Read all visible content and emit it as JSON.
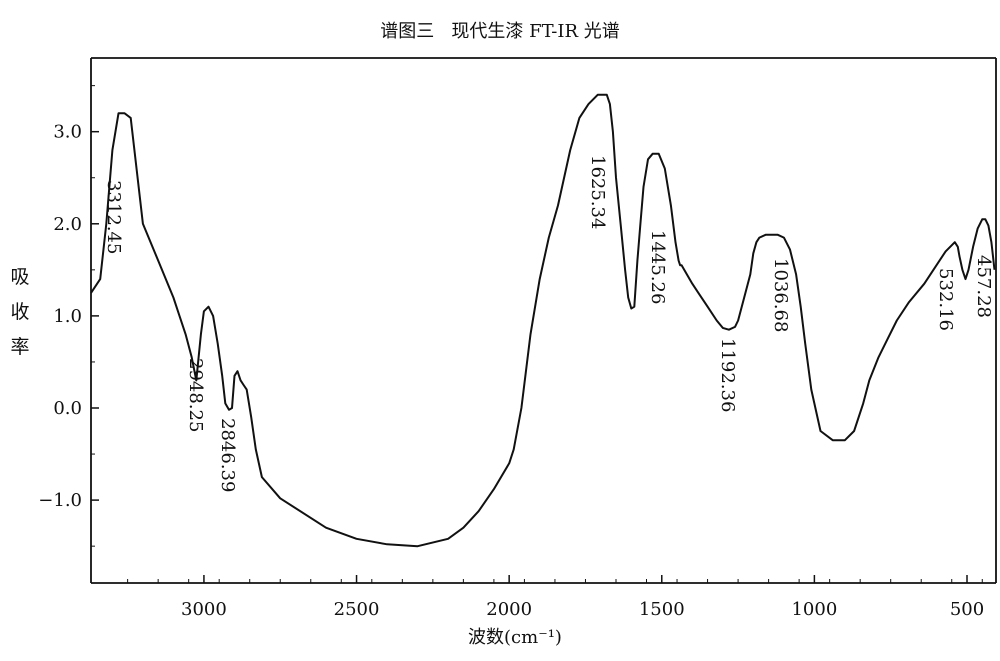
{
  "chart_data": {
    "type": "line",
    "title": "谱图三   现代生漆 FT-IR 光谱",
    "xlabel": "波数(cm⁻¹)",
    "ylabel": "吸收率",
    "x_reversed": true,
    "xlim": [
      3370,
      405
    ],
    "ylim": [
      -1.9,
      3.8
    ],
    "grid": false,
    "x_ticks": [
      {
        "value": 3000,
        "label": "3000"
      },
      {
        "value": 2500,
        "label": "2500"
      },
      {
        "value": 2000,
        "label": "2000"
      },
      {
        "value": 1500,
        "label": "1500"
      },
      {
        "value": 1000,
        "label": "1000"
      },
      {
        "value": 500,
        "label": "500"
      }
    ],
    "y_ticks": [
      {
        "value": 3.0,
        "label": "3.0"
      },
      {
        "value": 2.0,
        "label": "2.0"
      },
      {
        "value": 1.0,
        "label": "1.0"
      },
      {
        "value": 0.0,
        "label": "0.0"
      },
      {
        "value": -1.0,
        "label": "−1.0"
      }
    ],
    "peaks": [
      {
        "x": 3312.45,
        "y": 3.1,
        "label": "3312.45"
      },
      {
        "x": 2948.25,
        "y": 0.3,
        "label": "2948.25"
      },
      {
        "x": 2846.39,
        "y": 0.0,
        "label": "2846.39"
      },
      {
        "x": 1625.34,
        "y": 3.2,
        "label": "1625.34"
      },
      {
        "x": 1445.26,
        "y": 1.1,
        "label": "1445.26"
      },
      {
        "x": 1192.36,
        "y": 0.85,
        "label": "1192.36"
      },
      {
        "x": 1036.68,
        "y": 1.8,
        "label": "1036.68"
      },
      {
        "x": 532.16,
        "y": 1.65,
        "label": "532.16"
      },
      {
        "x": 457.28,
        "y": 1.4,
        "label": "457.28"
      }
    ],
    "series": [
      {
        "x": [
          3370,
          3340,
          3320,
          3300,
          3280,
          3260,
          3240,
          3200,
          3150,
          3100,
          3080,
          3060,
          3040,
          3025,
          3010,
          3000,
          2985,
          2970,
          2955,
          2940,
          2930,
          2918,
          2908,
          2900,
          2890,
          2880,
          2870,
          2860,
          2845,
          2830,
          2810,
          2750,
          2600,
          2500,
          2400,
          2300,
          2200,
          2150,
          2100,
          2050,
          2000,
          1985,
          1960,
          1930,
          1900,
          1870,
          1840,
          1800,
          1770,
          1740,
          1710,
          1680,
          1670,
          1660,
          1650,
          1635,
          1620,
          1610,
          1600,
          1590,
          1580,
          1570,
          1560,
          1545,
          1530,
          1510,
          1490,
          1470,
          1455,
          1445,
          1440,
          1435,
          1400,
          1380,
          1350,
          1320,
          1300,
          1280,
          1260,
          1250,
          1230,
          1210,
          1200,
          1190,
          1180,
          1160,
          1140,
          1120,
          1100,
          1080,
          1060,
          1045,
          1030,
          1010,
          980,
          940,
          900,
          870,
          840,
          820,
          790,
          760,
          730,
          690,
          640,
          600,
          570,
          540,
          530,
          525,
          515,
          505,
          495,
          480,
          465,
          450,
          440,
          430,
          420,
          410
        ],
        "y": [
          1.25,
          1.4,
          2.0,
          2.8,
          3.2,
          3.2,
          3.15,
          2.0,
          1.6,
          1.2,
          1.0,
          0.8,
          0.55,
          0.3,
          0.8,
          1.05,
          1.1,
          1.0,
          0.7,
          0.35,
          0.05,
          -0.02,
          0.0,
          0.35,
          0.4,
          0.3,
          0.25,
          0.2,
          -0.1,
          -0.45,
          -0.75,
          -0.98,
          -1.3,
          -1.42,
          -1.48,
          -1.5,
          -1.42,
          -1.3,
          -1.12,
          -0.88,
          -0.6,
          -0.45,
          0.0,
          0.8,
          1.4,
          1.85,
          2.2,
          2.8,
          3.15,
          3.3,
          3.4,
          3.4,
          3.3,
          3.0,
          2.5,
          2.0,
          1.5,
          1.2,
          1.08,
          1.1,
          1.6,
          2.0,
          2.4,
          2.7,
          2.76,
          2.76,
          2.6,
          2.2,
          1.8,
          1.6,
          1.55,
          1.55,
          1.35,
          1.25,
          1.1,
          0.95,
          0.87,
          0.85,
          0.88,
          0.95,
          1.2,
          1.45,
          1.68,
          1.8,
          1.85,
          1.88,
          1.88,
          1.88,
          1.85,
          1.72,
          1.45,
          1.1,
          0.7,
          0.2,
          -0.25,
          -0.35,
          -0.35,
          -0.25,
          0.05,
          0.3,
          0.55,
          0.75,
          0.95,
          1.15,
          1.35,
          1.55,
          1.7,
          1.8,
          1.75,
          1.65,
          1.5,
          1.4,
          1.5,
          1.75,
          1.95,
          2.05,
          2.05,
          1.98,
          1.8,
          1.5
        ]
      }
    ]
  }
}
